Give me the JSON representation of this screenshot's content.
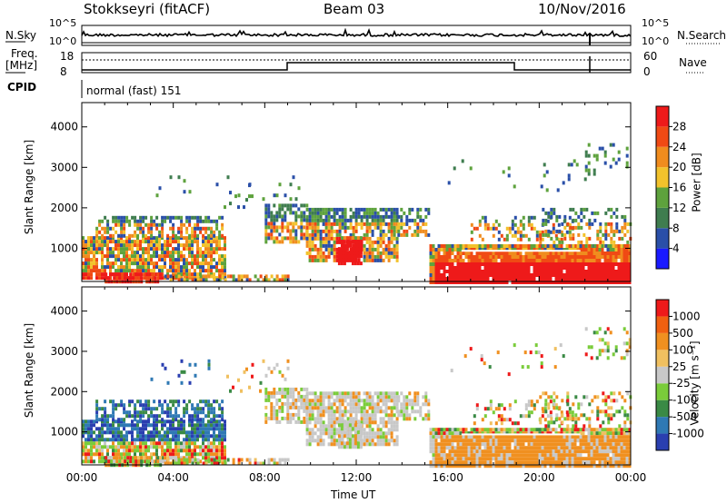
{
  "header": {
    "radar": "Stokkseyri (fitACF)",
    "beam": "Beam 03",
    "date": "10/Nov/2016"
  },
  "top_strip": {
    "nsky_label": "N.Sky",
    "nsearch_label": "N.Search",
    "left_ticks": [
      "10^5",
      "10^0"
    ],
    "right_ticks": [
      "10^5",
      "10^0"
    ],
    "freq_label_1": "Freq.",
    "freq_label_2": "[MHz]",
    "freq_ticks": [
      "18",
      "8"
    ],
    "nave_label": "Nave",
    "nave_ticks": [
      "60",
      "0"
    ],
    "cpid_label": "CPID",
    "cpid_value": "normal (fast) 151"
  },
  "time_axis": {
    "label": "Time UT",
    "ticks": [
      "00:00",
      "04:00",
      "08:00",
      "12:00",
      "16:00",
      "20:00",
      "00:00"
    ]
  },
  "colors": {
    "power_scale": [
      "#1a1aff",
      "#2a4fa8",
      "#3f7d4f",
      "#5ea23d",
      "#f2c22c",
      "#f08c1e",
      "#f04a14",
      "#ee1a1a"
    ],
    "velocity_scale": [
      "#2a3fb0",
      "#2f79b4",
      "#3a8a45",
      "#7acc3a",
      "#c8c8c8",
      "#f0c060",
      "#f09020",
      "#f06010",
      "#ee1a1a"
    ]
  },
  "chart_data": [
    {
      "type": "heatmap",
      "name": "power",
      "xlabel": "Time UT",
      "ylabel": "Slant Range [km]",
      "ylim": [
        180,
        4600
      ],
      "yticks": [
        1000,
        2000,
        3000,
        4000
      ],
      "colorbar_label": "Power [dB]",
      "colorbar_ticks": [
        "28",
        "24",
        "20",
        "16",
        "12",
        "8",
        "4"
      ],
      "x": [
        "00:00",
        "04:00",
        "08:00",
        "12:00",
        "16:00",
        "20:00",
        "00:00"
      ]
    },
    {
      "type": "heatmap",
      "name": "velocity",
      "xlabel": "Time UT",
      "ylabel": "Slant Range [km]",
      "ylim": [
        180,
        4600
      ],
      "yticks": [
        1000,
        2000,
        3000,
        4000
      ],
      "colorbar_label": "Velocity [m s⁻¹]",
      "colorbar_ticks": [
        "1000",
        "500",
        "100",
        "25",
        "-25",
        "-100",
        "-500",
        "-1000"
      ],
      "x": [
        "00:00",
        "04:00",
        "08:00",
        "12:00",
        "16:00",
        "20:00",
        "00:00"
      ]
    }
  ]
}
